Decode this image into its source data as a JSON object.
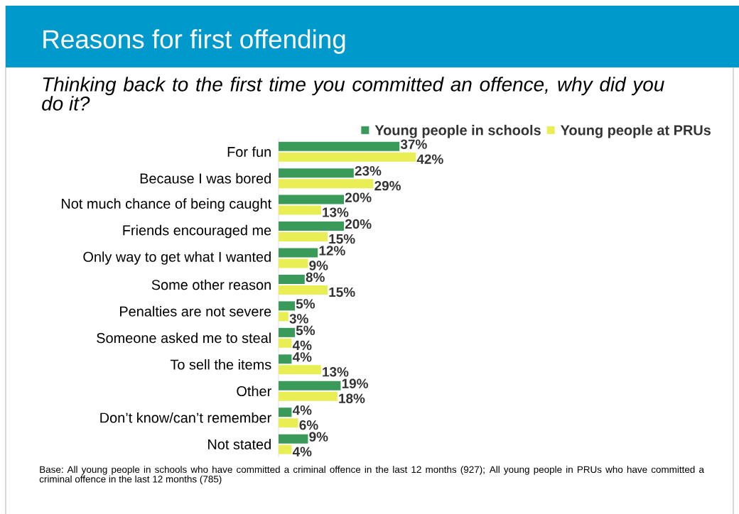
{
  "chart_data": {
    "type": "bar",
    "orientation": "horizontal",
    "title": "Reasons for first offending",
    "subtitle": "Thinking back to the first time you committed an offence, why did you do it?",
    "categories": [
      "For fun",
      "Because I was bored",
      "Not much chance of being caught",
      "Friends encouraged me",
      "Only way to get what I wanted",
      "Some other reason",
      "Penalties are not severe",
      "Someone asked me to steal",
      "To sell the items",
      "Other",
      "Don’t know/can’t remember",
      "Not stated"
    ],
    "series": [
      {
        "name": "Young people in schools",
        "color": "#3a9a5a",
        "values": [
          37,
          23,
          20,
          20,
          12,
          8,
          5,
          5,
          4,
          19,
          4,
          9
        ],
        "value_labels": [
          "37%",
          "23%",
          "20%",
          "20%",
          "12%",
          "8%",
          "5%",
          "5%",
          "4%",
          "19%",
          "4%",
          "9%"
        ]
      },
      {
        "name": "Young people at PRUs",
        "color": "#e9ee55",
        "values": [
          42,
          29,
          13,
          15,
          9,
          15,
          3,
          4,
          13,
          18,
          6,
          4
        ],
        "value_labels": [
          "42%",
          "29%",
          "13%",
          "15%",
          "9%",
          "15%",
          "3%",
          "4%",
          "13%",
          "18%",
          "6%",
          "4%"
        ]
      }
    ],
    "legend": "top right",
    "annotations": [
      "Base: All young people in schools who have committed a criminal offence in the last 12 months (927); All young people in PRUs who have committed a criminal offence in the last 12 months (785)"
    ]
  }
}
